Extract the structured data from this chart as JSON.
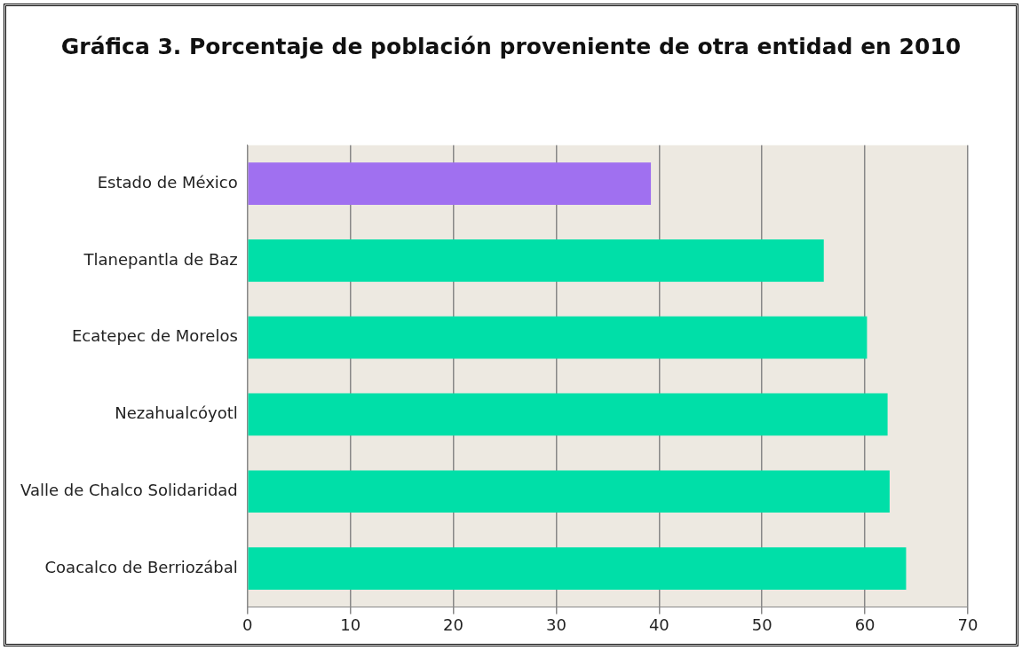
{
  "chart_data": {
    "type": "bar",
    "orientation": "horizontal",
    "title": "Gráfica 3. Porcentaje de población proveniente de otra entidad en 2010",
    "categories": [
      "Estado de México",
      "Tlanepantla de Baz",
      "Ecatepec de Morelos",
      "Nezahualcóyotl",
      "Valle de Chalco Solidaridad",
      "Coacalco de Berriozábal"
    ],
    "values": [
      39.2,
      56,
      60.2,
      62.2,
      62.4,
      64
    ],
    "colors": [
      "#a070f0",
      "#00dfa8",
      "#00dfa8",
      "#00dfa8",
      "#00dfa8",
      "#00dfa8"
    ],
    "xlim": [
      0,
      70
    ],
    "xticks": [
      0,
      10,
      20,
      30,
      40,
      50,
      60,
      70
    ],
    "grid": "x",
    "legend": false
  }
}
